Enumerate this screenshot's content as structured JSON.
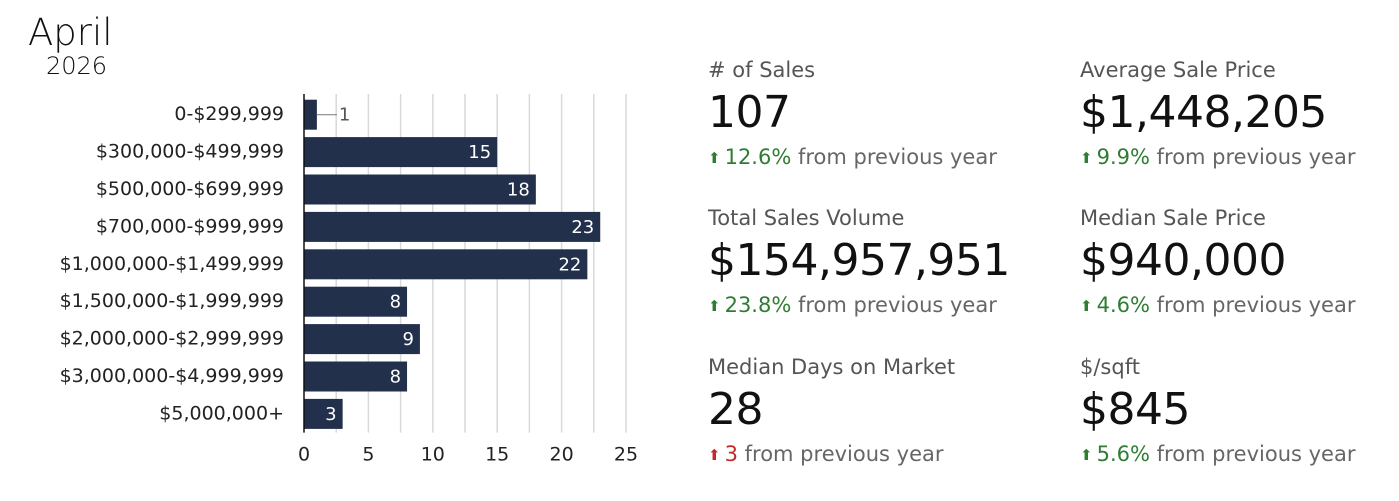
{
  "header": {
    "month": "April",
    "year": "2026"
  },
  "chart_data": {
    "type": "bar",
    "orientation": "horizontal",
    "categories": [
      "0-$299,999",
      "$300,000-$499,999",
      "$500,000-$699,999",
      "$700,000-$999,999",
      "$1,000,000-$1,499,999",
      "$1,500,000-$1,999,999",
      "$2,000,000-$2,999,999",
      "$3,000,000-$4,999,999",
      "$5,000,000+"
    ],
    "values": [
      1,
      15,
      18,
      23,
      22,
      8,
      9,
      8,
      3
    ],
    "data_labels": [
      "1",
      "15",
      "18",
      "23",
      "22",
      "8",
      "9",
      "8",
      "3"
    ],
    "xlim": [
      0,
      25
    ],
    "xticks": [
      "0",
      "5",
      "10",
      "15",
      "20",
      "25"
    ],
    "xtick_values": [
      0,
      5,
      10,
      15,
      20,
      25
    ],
    "grid": true,
    "bar_color": "#22304c"
  },
  "stats": [
    {
      "label": "# of Sales",
      "value": "107",
      "change": "12.6%",
      "direction": "up",
      "tone": "pos",
      "suffix": "from previous year"
    },
    {
      "label": "Average Sale Price",
      "value": "$1,448,205",
      "change": "9.9%",
      "direction": "up",
      "tone": "pos",
      "suffix": "from previous year"
    },
    {
      "label": "Total Sales Volume",
      "value": "$154,957,951",
      "change": "23.8%",
      "direction": "up",
      "tone": "pos",
      "suffix": "from previous year"
    },
    {
      "label": "Median Sale Price",
      "value": "$940,000",
      "change": "4.6%",
      "direction": "up",
      "tone": "pos",
      "suffix": "from previous year"
    },
    {
      "label": "Median Days on Market",
      "value": "28",
      "change": "3",
      "direction": "up",
      "tone": "neg",
      "suffix": "from previous year"
    },
    {
      "label": "$/sqft",
      "value": "$845",
      "change": "5.6%",
      "direction": "up",
      "tone": "pos",
      "suffix": "from previous year"
    }
  ],
  "colors": {
    "positive": "#2e7d32",
    "negative": "#c62828",
    "bar": "#22304c",
    "grid": "#d9d9d9"
  }
}
